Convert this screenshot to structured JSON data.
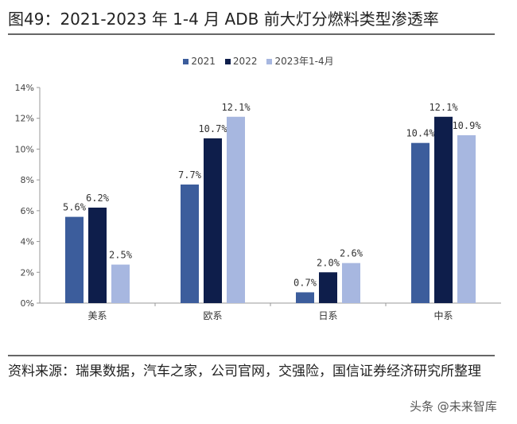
{
  "chart_data": {
    "type": "bar",
    "title": "图49：2021-2023 年 1-4 月 ADB 前大灯分燃料类型渗透率",
    "categories": [
      "美系",
      "欧系",
      "日系",
      "中系"
    ],
    "series": [
      {
        "name": "2021",
        "color": "#3c5d9c",
        "values": [
          5.6,
          7.7,
          0.7,
          10.4
        ],
        "labels": [
          "5.6%",
          "7.7%",
          "0.7%",
          "10.4%"
        ]
      },
      {
        "name": "2022",
        "color": "#0e1e4b",
        "values": [
          6.2,
          10.7,
          2.0,
          12.1
        ],
        "labels": [
          "6.2%",
          "10.7%",
          "2.0%",
          "12.1%"
        ]
      },
      {
        "name": "2023年1-4月",
        "color": "#a7b7e0",
        "values": [
          2.5,
          12.1,
          2.6,
          10.9
        ],
        "labels": [
          "2.5%",
          "12.1%",
          "2.6%",
          "10.9%"
        ]
      }
    ],
    "ylim": [
      0,
      14
    ],
    "yticks": [
      "0%",
      "2%",
      "4%",
      "6%",
      "8%",
      "10%",
      "12%",
      "14%"
    ],
    "xlabel": "",
    "ylabel": "",
    "legend": "top-center",
    "grid": false
  },
  "source": "资料来源：瑞果数据，汽车之家，公司官网，交强险，国信证券经济研究所整理",
  "watermark": "头条 @未来智库"
}
